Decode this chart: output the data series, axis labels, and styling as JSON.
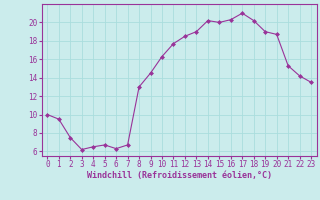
{
  "x": [
    0,
    1,
    2,
    3,
    4,
    5,
    6,
    7,
    8,
    9,
    10,
    11,
    12,
    13,
    14,
    15,
    16,
    17,
    18,
    19,
    20,
    21,
    22,
    23
  ],
  "y": [
    10.0,
    9.5,
    7.5,
    6.2,
    6.5,
    6.7,
    6.3,
    6.7,
    13.0,
    14.5,
    16.3,
    17.7,
    18.5,
    19.0,
    20.2,
    20.0,
    20.3,
    21.0,
    20.2,
    19.0,
    18.7,
    15.3,
    14.2,
    13.5
  ],
  "line_color": "#993399",
  "marker": "D",
  "marker_size": 2.0,
  "bg_color": "#cbecec",
  "grid_color": "#aadddd",
  "xlabel": "Windchill (Refroidissement éolien,°C)",
  "xlabel_color": "#993399",
  "tick_color": "#993399",
  "spine_color": "#993399",
  "ylim": [
    5.5,
    22.0
  ],
  "xlim": [
    -0.5,
    23.5
  ],
  "yticks": [
    6,
    8,
    10,
    12,
    14,
    16,
    18,
    20
  ],
  "xticks": [
    0,
    1,
    2,
    3,
    4,
    5,
    6,
    7,
    8,
    9,
    10,
    11,
    12,
    13,
    14,
    15,
    16,
    17,
    18,
    19,
    20,
    21,
    22,
    23
  ],
  "tick_fontsize": 5.5,
  "xlabel_fontsize": 6.0
}
